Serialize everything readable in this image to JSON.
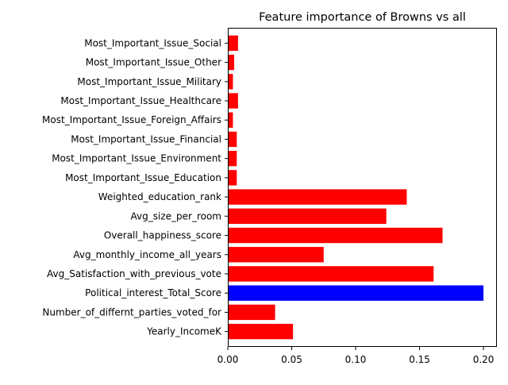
{
  "chart_data": {
    "type": "bar",
    "orientation": "horizontal",
    "title": "Feature importance of Browns vs all",
    "xlabel": "",
    "ylabel": "",
    "xlim": [
      0,
      0.2105
    ],
    "x_ticks": [
      "0.00",
      "0.05",
      "0.10",
      "0.15",
      "0.20"
    ],
    "grid": false,
    "categories": [
      "Yearly_IncomeK",
      "Number_of_differnt_parties_voted_for",
      "Political_interest_Total_Score",
      "Avg_Satisfaction_with_previous_vote",
      "Avg_monthly_income_all_years",
      "Overall_happiness_score",
      "Avg_size_per_room",
      "Weighted_education_rank",
      "Most_Important_Issue_Education",
      "Most_Important_Issue_Environment",
      "Most_Important_Issue_Financial",
      "Most_Important_Issue_Foreign_Affairs",
      "Most_Important_Issue_Healthcare",
      "Most_Important_Issue_Military",
      "Most_Important_Issue_Other",
      "Most_Important_Issue_Social"
    ],
    "values": [
      0.051,
      0.037,
      0.2,
      0.161,
      0.075,
      0.168,
      0.124,
      0.14,
      0.007,
      0.007,
      0.007,
      0.004,
      0.008,
      0.004,
      0.005,
      0.008
    ],
    "colors": [
      "#ff0000",
      "#ff0000",
      "#0000ff",
      "#ff0000",
      "#ff0000",
      "#ff0000",
      "#ff0000",
      "#ff0000",
      "#ff0000",
      "#ff0000",
      "#ff0000",
      "#ff0000",
      "#ff0000",
      "#ff0000",
      "#ff0000",
      "#ff0000"
    ],
    "highlight_category": "Political_interest_Total_Score",
    "highlight_color": "#0000ff",
    "default_color": "#ff0000"
  }
}
